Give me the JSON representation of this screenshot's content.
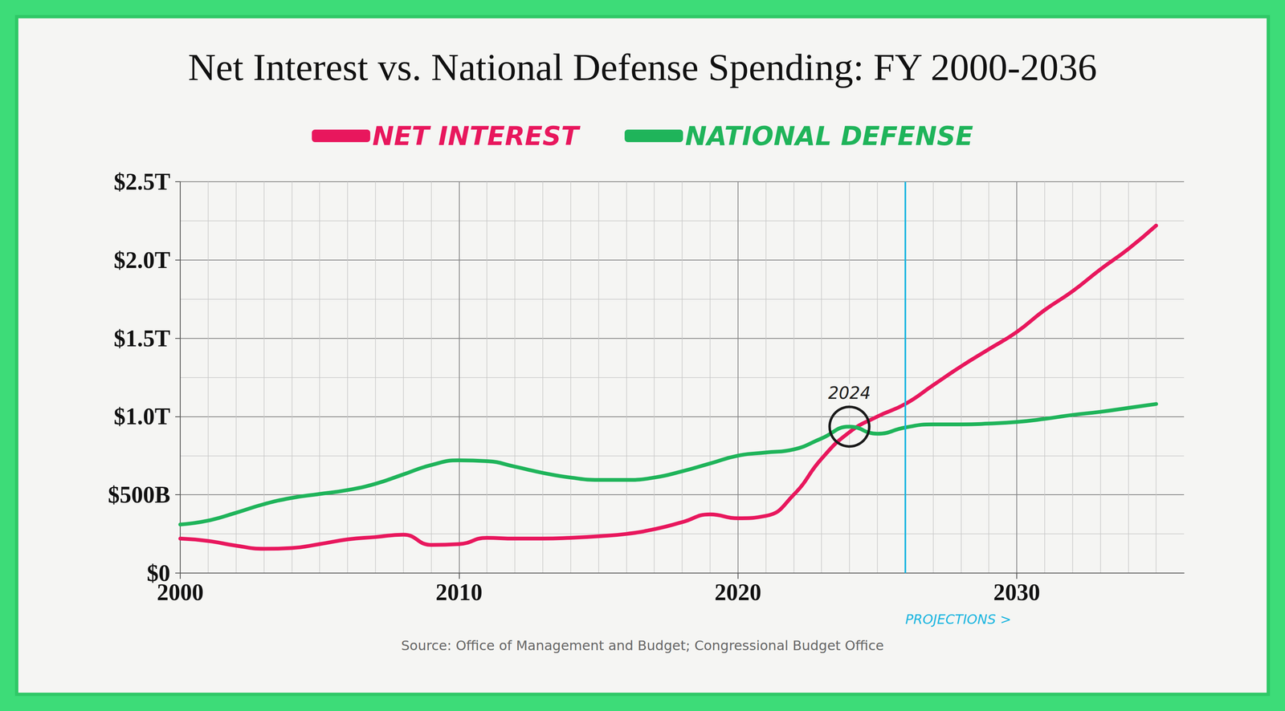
{
  "chart_data": {
    "type": "line",
    "title": "Net Interest vs. National Defense Spending: FY 2000-2036",
    "source": "Source: Office of Management and Budget; Congressional Budget Office",
    "x": [
      2000,
      2001,
      2002,
      2003,
      2004,
      2005,
      2006,
      2007,
      2008,
      2009,
      2010,
      2011,
      2012,
      2013,
      2014,
      2015,
      2016,
      2017,
      2018,
      2019,
      2020,
      2021,
      2022,
      2023,
      2024,
      2025,
      2026,
      2027,
      2028,
      2029,
      2030,
      2031,
      2032,
      2033,
      2034,
      2035
    ],
    "series": [
      {
        "name": "NET INTEREST",
        "color": "#e8175d",
        "values": [
          220,
          205,
          175,
          155,
          160,
          185,
          215,
          230,
          245,
          180,
          185,
          225,
          220,
          220,
          225,
          235,
          250,
          280,
          325,
          375,
          350,
          365,
          500,
          730,
          900,
          1000,
          1080,
          1200,
          1320,
          1430,
          1540,
          1680,
          1800,
          1940,
          2070,
          2220
        ]
      },
      {
        "name": "NATIONAL DEFENSE",
        "color": "#1fb45a",
        "values": [
          310,
          335,
          385,
          440,
          480,
          505,
          530,
          570,
          630,
          690,
          720,
          715,
          680,
          640,
          610,
          595,
          595,
          610,
          650,
          700,
          750,
          770,
          790,
          860,
          935,
          890,
          930,
          950,
          950,
          955,
          965,
          985,
          1010,
          1030,
          1055,
          1080
        ]
      }
    ],
    "xlim": [
      2000,
      2036
    ],
    "xticks": [
      2000,
      2010,
      2020,
      2030
    ],
    "ylim": [
      0,
      2500
    ],
    "yticks": [
      {
        "value": 0,
        "label": "$0"
      },
      {
        "value": 500,
        "label": "$500B"
      },
      {
        "value": 1000,
        "label": "$1.0T"
      },
      {
        "value": 1500,
        "label": "$1.5T"
      },
      {
        "value": 2000,
        "label": "$2.0T"
      },
      {
        "value": 2500,
        "label": "$2.5T"
      }
    ],
    "grid": true,
    "legend": "top",
    "projection_line": {
      "x": 2026,
      "label": "PROJECTIONS >",
      "color": "#1ab6e0"
    },
    "annotations": [
      {
        "text": "2024",
        "x": 2024,
        "y": 935
      }
    ]
  }
}
